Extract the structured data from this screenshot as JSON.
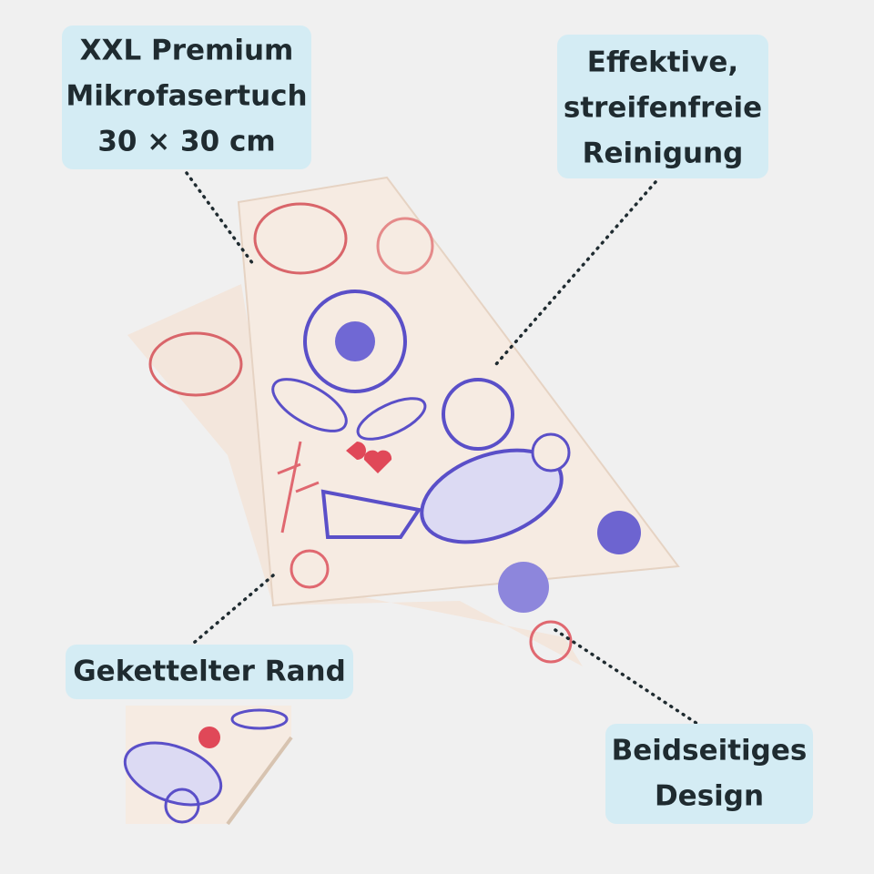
{
  "callouts": [
    {
      "lines": [
        "XXL Premium",
        "Mikrofasertuch",
        "30 × 30 cm"
      ]
    },
    {
      "lines": [
        "Effektive,",
        "streifenfreie",
        "Reinigung"
      ]
    },
    {
      "lines": [
        "Gekettelter Rand"
      ]
    },
    {
      "lines": [
        "Beidseitiges",
        "Design"
      ]
    }
  ]
}
